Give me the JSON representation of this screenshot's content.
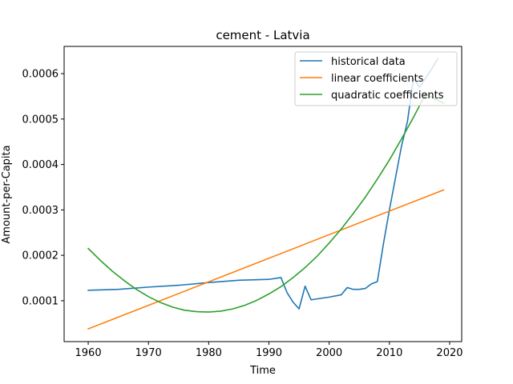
{
  "chart_data": {
    "type": "line",
    "title": "cement - Latvia",
    "xlabel": "Time",
    "ylabel": "Amount-per-Capita",
    "xlim": [
      1956,
      2022
    ],
    "ylim": [
      1e-05,
      0.00066
    ],
    "xticks": [
      1960,
      1970,
      1980,
      1990,
      2000,
      2010,
      2020
    ],
    "yticks": [
      0.0001,
      0.0002,
      0.0003,
      0.0004,
      0.0005,
      0.0006
    ],
    "ytick_labels": [
      "0.0001",
      "0.0002",
      "0.0003",
      "0.0004",
      "0.0005",
      "0.0006"
    ],
    "grid": false,
    "legend_position": "top-right",
    "series": [
      {
        "name": "historical data",
        "color": "#1f77b4",
        "x": [
          1960,
          1965,
          1970,
          1975,
          1980,
          1985,
          1990,
          1992,
          1993,
          1994,
          1995,
          1996,
          1997,
          1998,
          2000,
          2002,
          2003,
          2004,
          2005,
          2006,
          2007,
          2008,
          2009,
          2010,
          2011,
          2012,
          2013,
          2014,
          2015,
          2016,
          2017,
          2018
        ],
        "y": [
          0.000123,
          0.000125,
          0.00013,
          0.000134,
          0.00014,
          0.000145,
          0.000147,
          0.000151,
          0.000118,
          9.7e-05,
          8.2e-05,
          0.000132,
          0.000102,
          0.000104,
          0.000108,
          0.000113,
          0.000129,
          0.000125,
          0.000125,
          0.000127,
          0.000137,
          0.000142,
          0.000225,
          0.0003,
          0.00037,
          0.00044,
          0.000495,
          0.00059,
          0.00057,
          0.00059,
          0.00061,
          0.000632
        ]
      },
      {
        "name": "linear coefficients",
        "color": "#ff7f0e",
        "x": [
          1960,
          2019
        ],
        "y": [
          3.8e-05,
          0.000344
        ]
      },
      {
        "name": "quadratic coefficients",
        "color": "#2ca02c",
        "x": [
          1960,
          1962,
          1964,
          1966,
          1968,
          1970,
          1972,
          1974,
          1976,
          1978,
          1980,
          1982,
          1984,
          1986,
          1988,
          1990,
          1992,
          1994,
          1996,
          1998,
          2000,
          2002,
          2004,
          2006,
          2008,
          2010,
          2012,
          2014,
          2016,
          2019
        ],
        "y": [
          0.000215,
          0.000189,
          0.000165,
          0.000144,
          0.000125,
          0.000109,
          9.6e-05,
          8.6e-05,
          7.9e-05,
          7.6e-05,
          7.5e-05,
          7.7e-05,
          8.2e-05,
          9e-05,
          0.000101,
          0.000115,
          0.000131,
          0.000151,
          0.000173,
          0.000198,
          0.000227,
          0.000258,
          0.000292,
          0.000328,
          0.000368,
          0.00041,
          0.000456,
          0.000504,
          0.000555,
          0.000535
        ]
      }
    ]
  }
}
